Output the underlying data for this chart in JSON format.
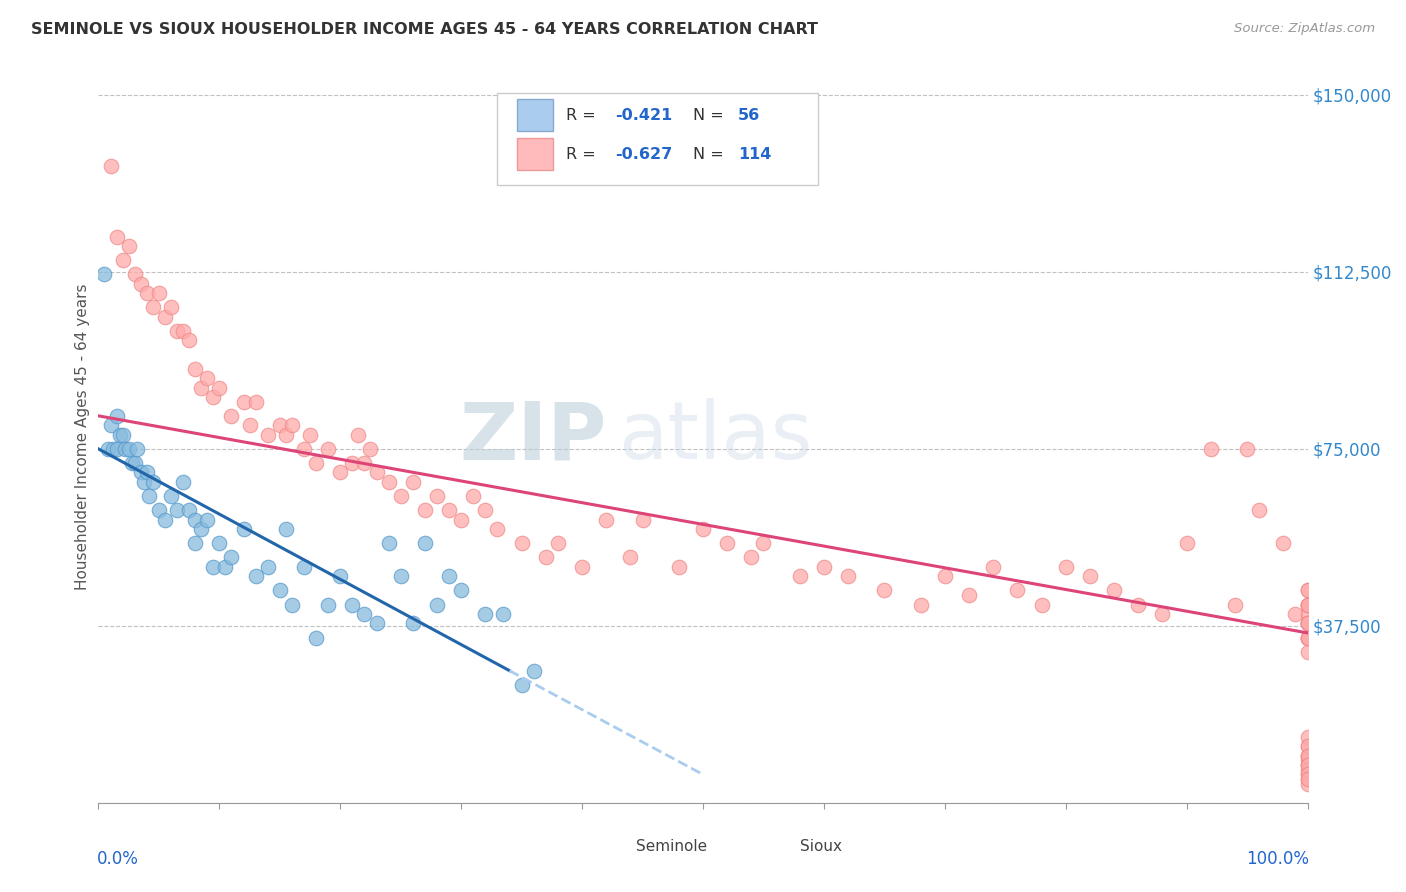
{
  "title": "SEMINOLE VS SIOUX HOUSEHOLDER INCOME AGES 45 - 64 YEARS CORRELATION CHART",
  "source": "Source: ZipAtlas.com",
  "ylabel": "Householder Income Ages 45 - 64 years",
  "yticks": [
    0,
    37500,
    75000,
    112500,
    150000
  ],
  "ytick_labels": [
    "",
    "$37,500",
    "$75,000",
    "$112,500",
    "$150,000"
  ],
  "seminole_color": "#88bbdd",
  "sioux_color": "#ffaaaa",
  "seminole_edge": "#5599cc",
  "sioux_edge": "#ee8888",
  "blue_line_color": "#2266aa",
  "pink_line_color": "#dd4477",
  "dashed_color": "#aaccee",
  "watermark_zip_color": "#c8d8e8",
  "watermark_atlas_color": "#c8d8e8",
  "background": "#ffffff",
  "xmin": 0,
  "xmax": 100,
  "ymin": 0,
  "ymax": 155000,
  "sem_line_x0": 0,
  "sem_line_y0": 75000,
  "sem_line_x1": 34,
  "sem_line_y1": 28000,
  "sem_dash_x0": 34,
  "sem_dash_y0": 28000,
  "sem_dash_x1": 50,
  "sem_dash_y1": 6000,
  "sioux_line_x0": 0,
  "sioux_line_y0": 82000,
  "sioux_line_x1": 100,
  "sioux_line_y1": 36000,
  "sem_pts_x": [
    0.5,
    0.8,
    1.0,
    1.2,
    1.5,
    1.5,
    1.8,
    2.0,
    2.2,
    2.5,
    2.8,
    3.0,
    3.2,
    3.5,
    3.8,
    4.0,
    4.2,
    4.5,
    5.0,
    5.5,
    6.0,
    6.5,
    7.0,
    7.5,
    8.0,
    8.0,
    8.5,
    9.0,
    9.5,
    10.0,
    10.5,
    11.0,
    12.0,
    13.0,
    14.0,
    15.0,
    15.5,
    16.0,
    17.0,
    18.0,
    19.0,
    20.0,
    21.0,
    22.0,
    23.0,
    24.0,
    25.0,
    26.0,
    27.0,
    28.0,
    29.0,
    30.0,
    32.0,
    33.5,
    35.0,
    36.0
  ],
  "sem_pts_y": [
    112000,
    75000,
    80000,
    75000,
    82000,
    75000,
    78000,
    78000,
    75000,
    75000,
    72000,
    72000,
    75000,
    70000,
    68000,
    70000,
    65000,
    68000,
    62000,
    60000,
    65000,
    62000,
    68000,
    62000,
    55000,
    60000,
    58000,
    60000,
    50000,
    55000,
    50000,
    52000,
    58000,
    48000,
    50000,
    45000,
    58000,
    42000,
    50000,
    35000,
    42000,
    48000,
    42000,
    40000,
    38000,
    55000,
    48000,
    38000,
    55000,
    42000,
    48000,
    45000,
    40000,
    40000,
    25000,
    28000
  ],
  "sioux_pts_x": [
    1.0,
    1.5,
    2.0,
    2.5,
    3.0,
    3.5,
    4.0,
    4.5,
    5.0,
    5.5,
    6.0,
    6.5,
    7.0,
    7.5,
    8.0,
    8.5,
    9.0,
    9.5,
    10.0,
    11.0,
    12.0,
    12.5,
    13.0,
    14.0,
    15.0,
    15.5,
    16.0,
    17.0,
    17.5,
    18.0,
    19.0,
    20.0,
    21.0,
    21.5,
    22.0,
    22.5,
    23.0,
    24.0,
    25.0,
    26.0,
    27.0,
    28.0,
    29.0,
    30.0,
    31.0,
    32.0,
    33.0,
    35.0,
    37.0,
    38.0,
    40.0,
    42.0,
    44.0,
    45.0,
    48.0,
    50.0,
    52.0,
    54.0,
    55.0,
    58.0,
    60.0,
    62.0,
    65.0,
    68.0,
    70.0,
    72.0,
    74.0,
    76.0,
    78.0,
    80.0,
    82.0,
    84.0,
    86.0,
    88.0,
    90.0,
    92.0,
    94.0,
    95.0,
    96.0,
    98.0,
    99.0,
    100.0,
    100.0,
    100.0,
    100.0,
    100.0,
    100.0,
    100.0,
    100.0,
    100.0,
    100.0,
    100.0,
    100.0,
    100.0,
    100.0,
    100.0,
    100.0,
    100.0,
    100.0,
    100.0,
    100.0,
    100.0,
    100.0,
    100.0,
    100.0,
    100.0,
    100.0,
    100.0,
    100.0,
    100.0,
    100.0,
    100.0,
    100.0,
    100.0
  ],
  "sioux_pts_y": [
    135000,
    120000,
    115000,
    118000,
    112000,
    110000,
    108000,
    105000,
    108000,
    103000,
    105000,
    100000,
    100000,
    98000,
    92000,
    88000,
    90000,
    86000,
    88000,
    82000,
    85000,
    80000,
    85000,
    78000,
    80000,
    78000,
    80000,
    75000,
    78000,
    72000,
    75000,
    70000,
    72000,
    78000,
    72000,
    75000,
    70000,
    68000,
    65000,
    68000,
    62000,
    65000,
    62000,
    60000,
    65000,
    62000,
    58000,
    55000,
    52000,
    55000,
    50000,
    60000,
    52000,
    60000,
    50000,
    58000,
    55000,
    52000,
    55000,
    48000,
    50000,
    48000,
    45000,
    42000,
    48000,
    44000,
    50000,
    45000,
    42000,
    50000,
    48000,
    45000,
    42000,
    40000,
    55000,
    75000,
    42000,
    75000,
    62000,
    55000,
    40000,
    45000,
    42000,
    38000,
    45000,
    42000,
    38000,
    40000,
    35000,
    42000,
    38000,
    35000,
    42000,
    38000,
    35000,
    32000,
    38000,
    35000,
    10000,
    9000,
    12000,
    8000,
    14000,
    10000,
    8000,
    12000,
    6000,
    10000,
    7000,
    5000,
    8000,
    6000,
    4000,
    5000
  ]
}
